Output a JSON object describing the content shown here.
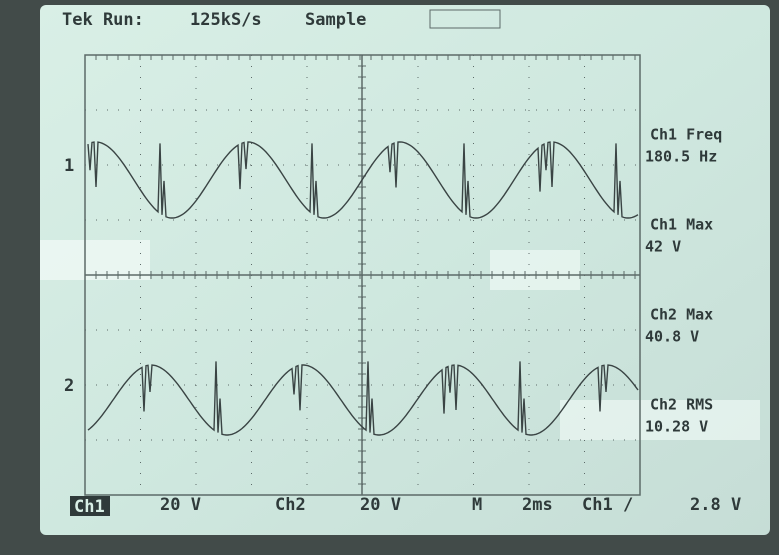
{
  "header": {
    "status": "Tek Run:",
    "rate": "125kS/s",
    "mode": "Sample"
  },
  "measurements": [
    {
      "label": "Ch1 Freq",
      "value": "180.5 Hz"
    },
    {
      "label": "Ch1 Max",
      "value": "42 V"
    },
    {
      "label": "Ch2 Max",
      "value": "40.8 V"
    },
    {
      "label": "Ch2 RMS",
      "value": "10.28 V"
    }
  ],
  "markers": {
    "ch1": "1",
    "ch2": "2"
  },
  "footer": {
    "ch1": "Ch1",
    "ch1_scale": "20 V",
    "ch2": "Ch2",
    "ch2_scale": "20 V",
    "timebase_label": "M",
    "timebase": "2ms",
    "trigger": "Ch1 /",
    "trigger_level": "2.8 V"
  }
}
